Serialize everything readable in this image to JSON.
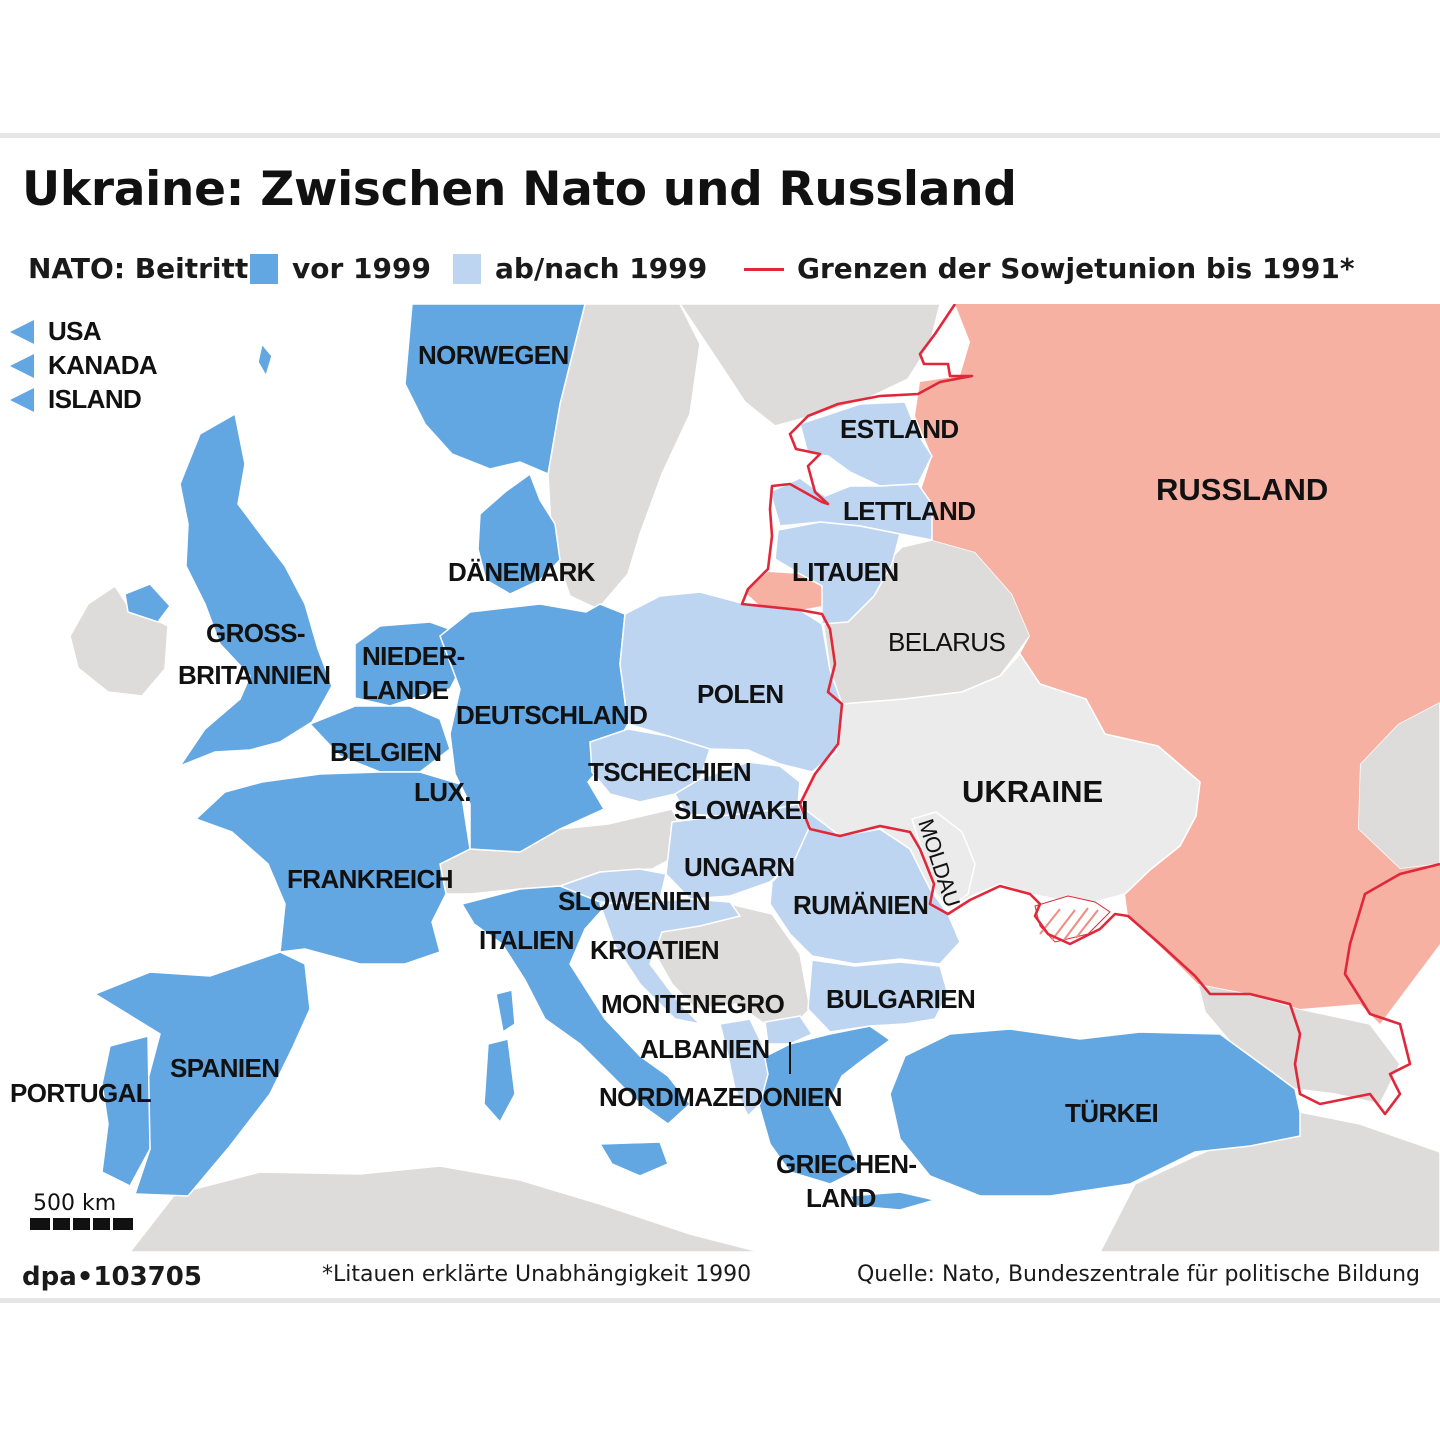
{
  "title": "Ukraine: Zwischen Nato und Russland",
  "legend": {
    "prefix": "NATO: Beitritt",
    "before_1999": "vor 1999",
    "after_1999": "ab/nach 1999",
    "soviet_border": "Grenzen der Sowjetunion bis 1991*"
  },
  "colors": {
    "nato_before_1999": "#62a6e2",
    "nato_after_1999": "#bed5f2",
    "russia": "#f7b1a3",
    "non_member": "#dedcda",
    "ukraine": "#ebebeb",
    "soviet_border_line": "#e0283a",
    "sea": "#ffffff"
  },
  "overseas_members": [
    "USA",
    "KANADA",
    "ISLAND"
  ],
  "countries": {
    "norwegen": "NORWEGEN",
    "daenemark": "DÄNEMARK",
    "grossbritannien_1": "GROSS-",
    "grossbritannien_2": "BRITANNIEN",
    "niederlande_1": "NIEDER-",
    "niederlande_2": "LANDE",
    "belgien": "BELGIEN",
    "lux": "LUX.",
    "deutschland": "DEUTSCHLAND",
    "frankreich": "FRANKREICH",
    "portugal": "PORTUGAL",
    "spanien": "SPANIEN",
    "italien": "ITALIEN",
    "estland": "ESTLAND",
    "lettland": "LETTLAND",
    "litauen": "LITAUEN",
    "polen": "POLEN",
    "tschechien": "TSCHECHIEN",
    "slowakei": "SLOWAKEI",
    "ungarn": "UNGARN",
    "slowenien": "SLOWENIEN",
    "kroatien": "KROATIEN",
    "rumaenien": "RUMÄNIEN",
    "bulgarien": "BULGARIEN",
    "montenegro": "MONTENEGRO",
    "albanien": "ALBANIEN",
    "nordmazedonien": "NORDMAZEDONIEN",
    "griechenland_1": "GRIECHEN-",
    "griechenland_2": "LAND",
    "tuerkei": "TÜRKEI",
    "russland": "RUSSLAND",
    "belarus": "BELARUS",
    "ukraine": "UKRAINE",
    "moldau": "MOLDAU"
  },
  "scale": "500 km",
  "footer": {
    "id": "dpa•103705",
    "note": "*Litauen erklärte Unabhängigkeit 1990",
    "source": "Quelle: Nato, Bundeszentrale für politische Bildung"
  }
}
